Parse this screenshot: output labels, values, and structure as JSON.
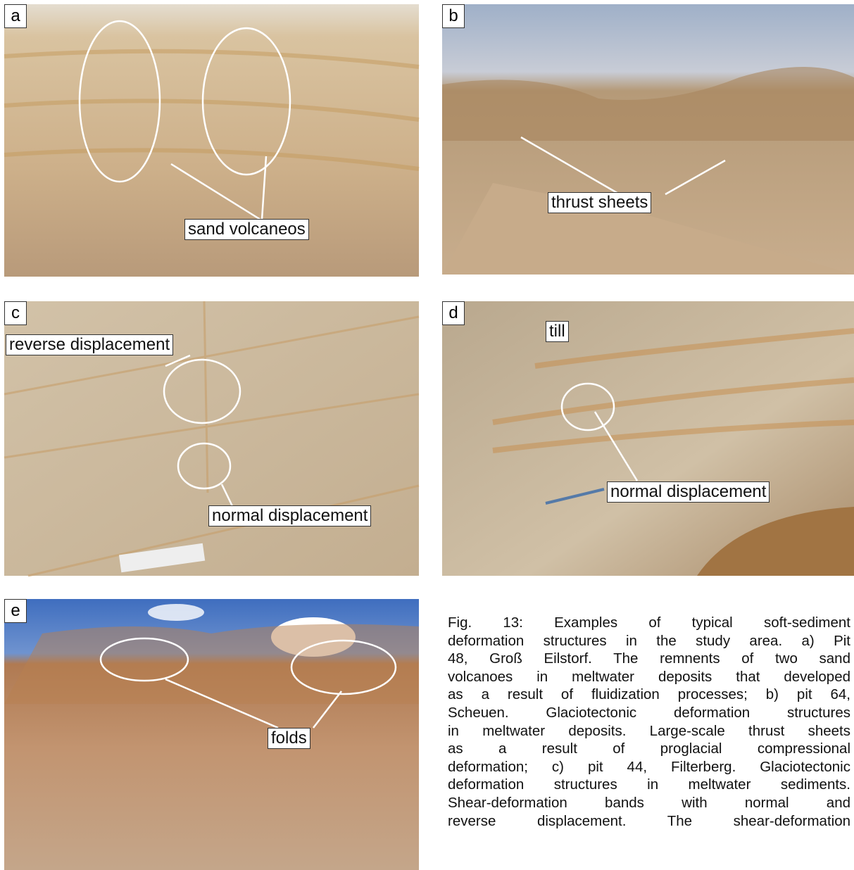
{
  "panels": [
    {
      "letter": "a",
      "annotations": [
        "sand volcaneos"
      ]
    },
    {
      "letter": "b",
      "annotations": [
        "thrust sheets"
      ]
    },
    {
      "letter": "c",
      "annotations": [
        "reverse displacement",
        "normal displacement"
      ]
    },
    {
      "letter": "d",
      "annotations": [
        "till",
        "normal displacement"
      ]
    },
    {
      "letter": "e",
      "annotations": [
        "folds"
      ]
    }
  ],
  "caption": {
    "lines": [
      "Fig. 13: Examples of typical soft-sediment",
      "deformation structures in the study area. a) Pit",
      "48, Groß Eilstorf. The remnents of two sand",
      "volcanoes in meltwater deposits that developed",
      "as a result of fluidization processes; b) pit 64,",
      "Scheuen. Glaciotectonic deformation structures",
      "in meltwater deposits. Large-scale thrust sheets",
      "as a result of proglacial compressional",
      "deformation; c) pit 44, Filterberg. Glaciotectonic",
      "deformation structures in meltwater sediments.",
      "Shear-deformation bands with normal and",
      "reverse displacement. The shear-deformation"
    ]
  }
}
